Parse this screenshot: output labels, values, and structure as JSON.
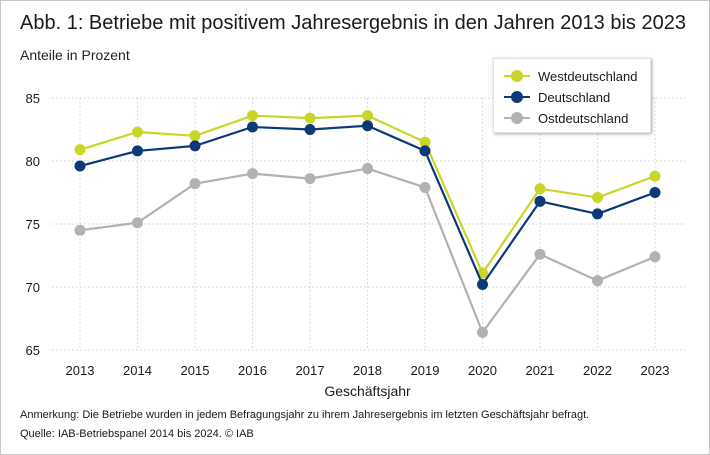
{
  "title": "Abb. 1: Betriebe mit positivem Jahresergebnis in den Jahren 2013 bis 2023",
  "subtitle": "Anteile in Prozent",
  "chart_data": {
    "type": "line",
    "title": "Abb. 1: Betriebe mit positivem Jahresergebnis in den Jahren 2013 bis 2023",
    "subtitle": "Anteile in Prozent",
    "xlabel": "Geschäftsjahr",
    "ylabel": "",
    "x": [
      "2013",
      "2014",
      "2015",
      "2016",
      "2017",
      "2018",
      "2019",
      "2020",
      "2021",
      "2022",
      "2023"
    ],
    "ylim": [
      65,
      85
    ],
    "yticks": [
      65,
      70,
      75,
      80,
      85
    ],
    "grid": true,
    "legend_position": "top-right",
    "series": [
      {
        "name": "Westdeutschland",
        "color": "#c9d627",
        "values": [
          80.9,
          82.3,
          82.0,
          83.6,
          83.4,
          83.6,
          81.5,
          71.1,
          77.8,
          77.1,
          78.8
        ]
      },
      {
        "name": "Deutschland",
        "color": "#0c3a78",
        "values": [
          79.6,
          80.8,
          81.2,
          82.7,
          82.5,
          82.8,
          80.8,
          70.2,
          76.8,
          75.8,
          77.5
        ]
      },
      {
        "name": "Ostdeutschland",
        "color": "#b2b2b2",
        "values": [
          74.5,
          75.1,
          78.2,
          79.0,
          78.6,
          79.4,
          77.9,
          66.4,
          72.6,
          70.5,
          72.4
        ]
      }
    ]
  },
  "notes": {
    "annotation": "Anmerkung: Die Betriebe wurden in jedem Befragungsjahr zu ihrem Jahresergebnis im letzten Geschäftsjahr befragt.",
    "source": "Quelle: IAB-Betriebspanel 2014 bis 2024.  © IAB"
  }
}
